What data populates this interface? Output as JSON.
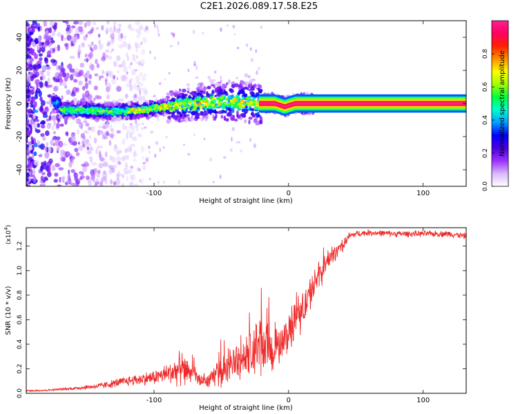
{
  "title": "C2E1.2026.089.17.58.E25",
  "chart_data": [
    {
      "type": "heatmap",
      "title": "C2E1.2026.089.17.58.E25",
      "xlabel": "Height of straight line (km)",
      "ylabel": "Frequency (Hz)",
      "xlim": [
        -195,
        132
      ],
      "ylim": [
        -50,
        50
      ],
      "xticks": [
        -100,
        0,
        100
      ],
      "yticks": [
        -40,
        -20,
        0,
        20,
        40
      ],
      "colorbar": {
        "label": "Normalized spectral amplitude",
        "range": [
          0,
          1
        ],
        "ticks": [
          "0.0",
          "0.2",
          "0.4",
          "0.6",
          "0.8"
        ],
        "colors": [
          "#ffffff",
          "#d7b8ff",
          "#9b30ff",
          "#4b00e0",
          "#0000ff",
          "#00a0ff",
          "#00ffd0",
          "#00ff40",
          "#a0ff00",
          "#ffff00",
          "#ff9000",
          "#ff2000",
          "#ff0060",
          "#ff2090"
        ]
      },
      "ridge": [
        {
          "x": -170,
          "f": -4
        },
        {
          "x": -150,
          "f": -4
        },
        {
          "x": -130,
          "f": -5
        },
        {
          "x": -110,
          "f": -4
        },
        {
          "x": -90,
          "f": -2
        },
        {
          "x": -70,
          "f": 0
        },
        {
          "x": -50,
          "f": 1
        },
        {
          "x": -35,
          "f": 1
        },
        {
          "x": -25,
          "f": 0
        },
        {
          "x": -10,
          "f": 0
        },
        {
          "x": -3,
          "f": -2
        },
        {
          "x": 5,
          "f": 0
        },
        {
          "x": 20,
          "f": 0
        },
        {
          "x": 132,
          "f": 0
        }
      ]
    },
    {
      "type": "line",
      "title": "",
      "xlabel": "Height of straight line (km)",
      "ylabel": "SNR (10 * v/v)",
      "y_multiplier": "(x10",
      "y_multiplier_exp": "4",
      "y_multiplier_close": ")",
      "xlim": [
        -195,
        132
      ],
      "ylim": [
        0,
        1.35
      ],
      "xticks": [
        -100,
        0,
        100
      ],
      "yticks": [
        "0.0",
        "0.2",
        "0.4",
        "0.6",
        "0.8",
        "1.0",
        "1.2"
      ],
      "line_color": "#ee2a2a",
      "series": [
        {
          "name": "SNR",
          "x": [
            -195,
            -180,
            -160,
            -140,
            -120,
            -100,
            -90,
            -80,
            -75,
            -70,
            -65,
            -60,
            -55,
            -50,
            -40,
            -30,
            -25,
            -20,
            -15,
            -10,
            -5,
            0,
            5,
            10,
            15,
            20,
            25,
            30,
            35,
            40,
            45,
            50,
            60,
            80,
            100,
            120,
            132
          ],
          "mean": [
            0.02,
            0.025,
            0.04,
            0.06,
            0.1,
            0.13,
            0.16,
            0.2,
            0.18,
            0.14,
            0.1,
            0.1,
            0.15,
            0.18,
            0.25,
            0.3,
            0.35,
            0.38,
            0.36,
            0.35,
            0.4,
            0.5,
            0.6,
            0.68,
            0.78,
            0.9,
            1.0,
            1.1,
            1.15,
            1.2,
            1.28,
            1.3,
            1.31,
            1.3,
            1.3,
            1.3,
            1.28
          ],
          "noise": [
            0.01,
            0.01,
            0.015,
            0.03,
            0.05,
            0.07,
            0.1,
            0.16,
            0.12,
            0.1,
            0.06,
            0.06,
            0.1,
            0.14,
            0.2,
            0.25,
            0.3,
            0.3,
            0.25,
            0.2,
            0.18,
            0.18,
            0.2,
            0.2,
            0.18,
            0.16,
            0.12,
            0.1,
            0.08,
            0.06,
            0.04,
            0.03,
            0.03,
            0.03,
            0.03,
            0.03,
            0.03
          ]
        }
      ]
    }
  ]
}
